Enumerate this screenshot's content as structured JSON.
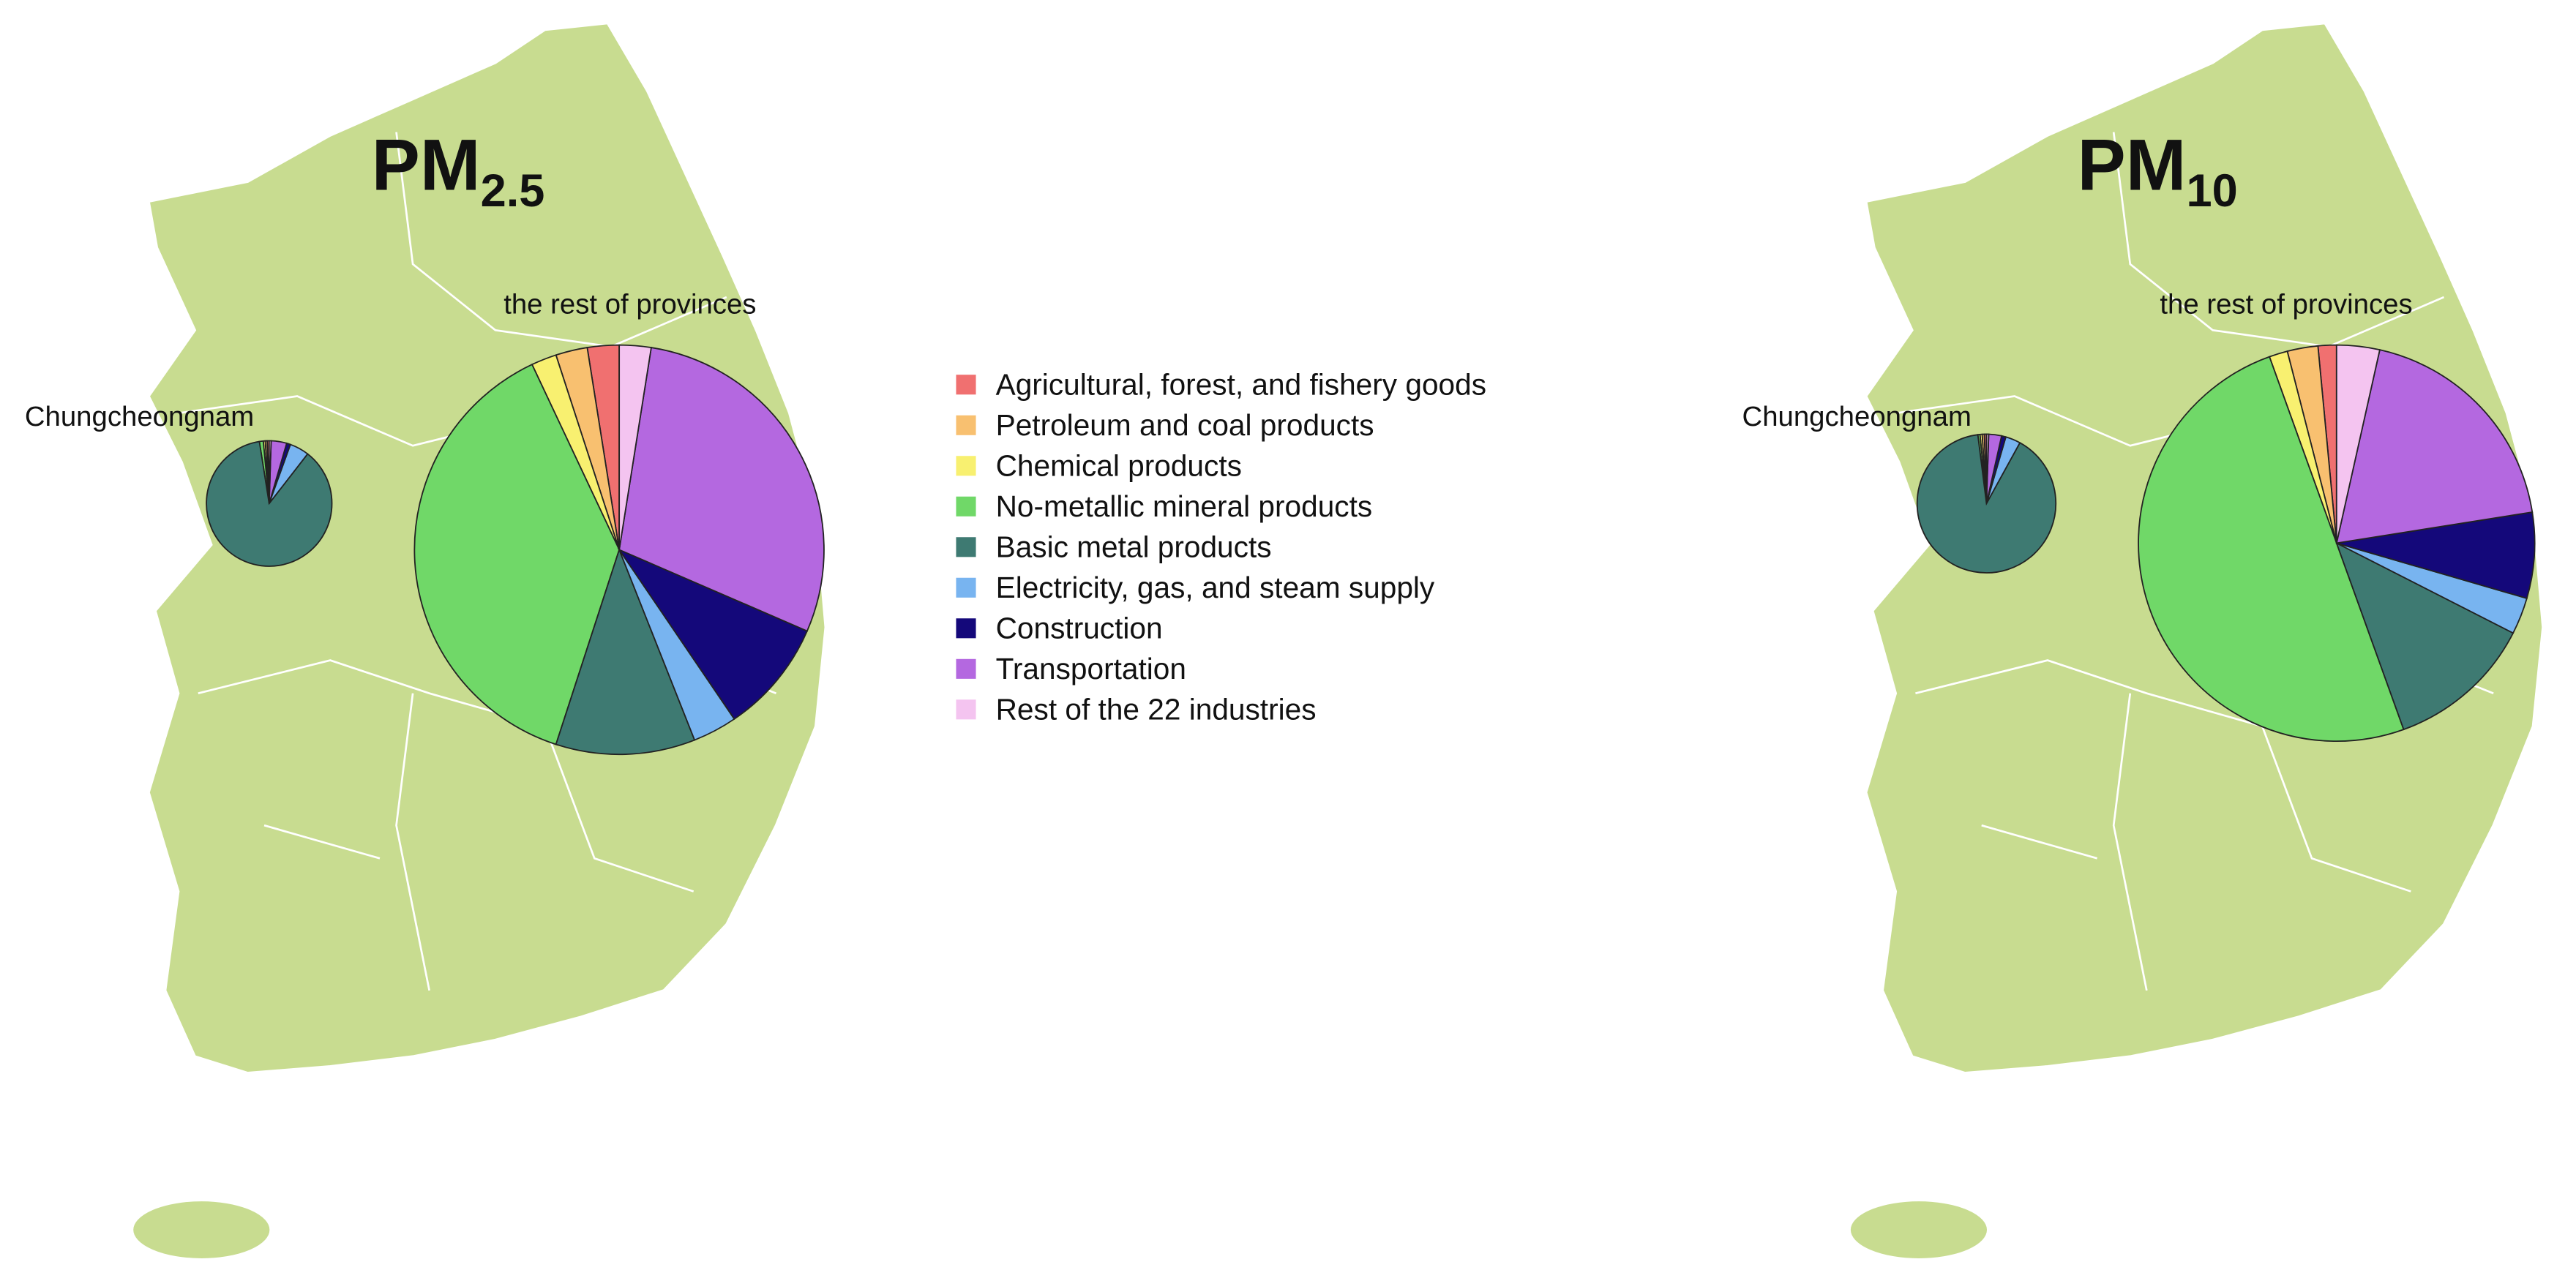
{
  "legend": {
    "categories": [
      "Agricultural, forest, and fishery goods",
      "Petroleum and coal products",
      "Chemical products",
      "No-metallic mineral products",
      "Basic metal products",
      "Electricity, gas, and steam supply",
      "Construction",
      "Transportation",
      "Rest of the 22 industries"
    ],
    "colors": [
      "#f07070",
      "#f8c070",
      "#f8f070",
      "#70d868",
      "#3e7a72",
      "#78b4f0",
      "#14087a",
      "#b468e0",
      "#f4c4f0"
    ]
  },
  "panels": [
    {
      "title": "PM",
      "title_subscript": "2.5",
      "pies": [
        {
          "type": "pie",
          "title": "Chungcheongnam",
          "values": [
            0.5,
            0.5,
            0.5,
            1,
            87,
            5,
            1,
            4,
            0.5
          ]
        },
        {
          "type": "pie",
          "title": "the rest of provinces",
          "values": [
            2.5,
            2.5,
            2,
            38,
            11,
            3.5,
            9,
            29,
            2.5
          ]
        }
      ]
    },
    {
      "title": "PM",
      "title_subscript": "10",
      "pies": [
        {
          "type": "pie",
          "title": "Chungcheongnam",
          "values": [
            0.5,
            0.5,
            0.5,
            0.5,
            90,
            3.5,
            1,
            3,
            0.5
          ]
        },
        {
          "type": "pie",
          "title": "the rest of provinces",
          "values": [
            1.5,
            2.5,
            1.5,
            50,
            12,
            3,
            7,
            19,
            3.5
          ]
        }
      ]
    }
  ]
}
